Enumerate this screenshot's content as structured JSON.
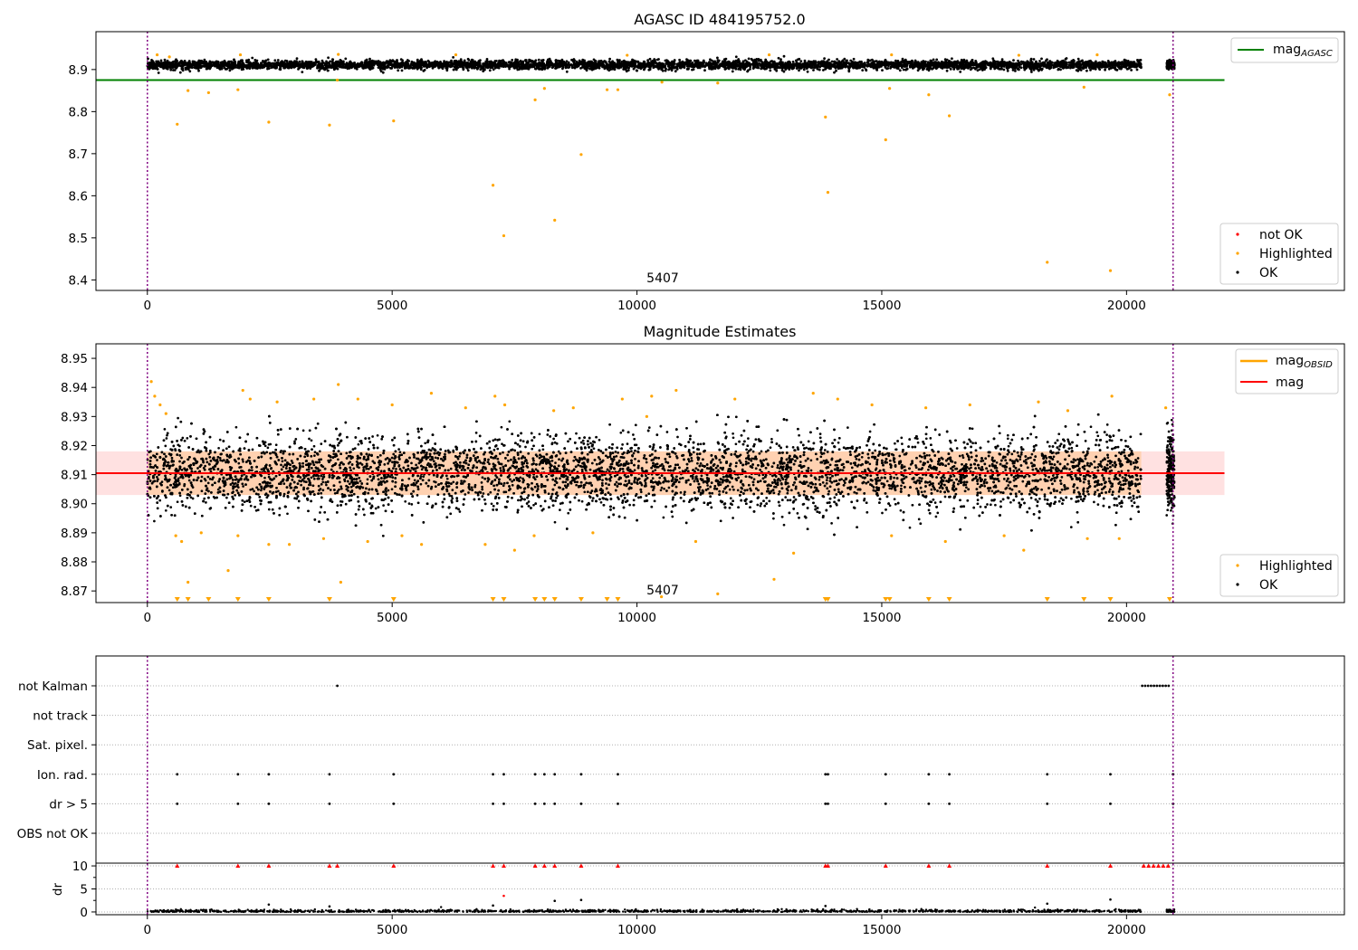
{
  "chart_data": [
    {
      "type": "scatter",
      "title": "AGASC ID 484195752.0",
      "xlim": [
        -1050,
        24450
      ],
      "ylim": [
        8.375,
        8.99
      ],
      "x_ticks": [
        0,
        5000,
        10000,
        15000,
        20000
      ],
      "y_ticks": [
        8.4,
        8.5,
        8.6,
        8.7,
        8.8,
        8.9
      ],
      "grid": false,
      "annotation": "5407",
      "vlines": [
        0,
        20950
      ],
      "hlines": [
        {
          "name": "mag_AGASC",
          "y": 8.875,
          "color": "#008000",
          "x_range": [
            -1050,
            22000
          ]
        }
      ],
      "series": [
        {
          "name": "not OK",
          "color": "#ff0000",
          "points": []
        },
        {
          "name": "Highlighted",
          "color": "#ffa500",
          "points": [
            [
              610,
              8.77
            ],
            [
              830,
              8.85
            ],
            [
              1250,
              8.845
            ],
            [
              1850,
              8.852
            ],
            [
              2480,
              8.775
            ],
            [
              3720,
              8.768
            ],
            [
              3880,
              8.875
            ],
            [
              5030,
              8.778
            ],
            [
              7060,
              8.625
            ],
            [
              7280,
              8.505
            ],
            [
              7920,
              8.828
            ],
            [
              8110,
              8.855
            ],
            [
              8320,
              8.542
            ],
            [
              8860,
              8.698
            ],
            [
              9390,
              8.852
            ],
            [
              9610,
              8.852
            ],
            [
              10510,
              8.87
            ],
            [
              11650,
              8.868
            ],
            [
              13850,
              8.787
            ],
            [
              13900,
              8.608
            ],
            [
              15080,
              8.733
            ],
            [
              15160,
              8.855
            ],
            [
              15960,
              8.84
            ],
            [
              16380,
              8.79
            ],
            [
              18380,
              8.442
            ],
            [
              19130,
              8.858
            ],
            [
              19670,
              8.422
            ],
            [
              20880,
              8.84
            ],
            [
              200,
              8.935
            ],
            [
              450,
              8.93
            ],
            [
              1900,
              8.935
            ],
            [
              3900,
              8.936
            ],
            [
              6300,
              8.935
            ],
            [
              9800,
              8.934
            ],
            [
              12700,
              8.935
            ],
            [
              15200,
              8.935
            ],
            [
              17800,
              8.934
            ],
            [
              19400,
              8.935
            ]
          ]
        }
      ],
      "ok_band": {
        "name": "OK",
        "color": "#000000",
        "x_range": [
          0,
          20300
        ],
        "x_range_2": [
          20820,
          20980
        ],
        "center": 8.911,
        "spread": 0.012,
        "count": 5407
      },
      "legends": [
        {
          "position": "upper right",
          "entries": [
            {
              "label": "mag",
              "sub": "AGASC",
              "kind": "line",
              "color": "#008000"
            }
          ]
        },
        {
          "position": "lower right",
          "entries": [
            {
              "label": "not OK",
              "kind": "dot",
              "color": "#ff0000"
            },
            {
              "label": "Highlighted",
              "kind": "dot",
              "color": "#ffa500"
            },
            {
              "label": "OK",
              "kind": "dot",
              "color": "#000000"
            }
          ]
        }
      ]
    },
    {
      "type": "scatter",
      "title": "Magnitude Estimates",
      "xlim": [
        -1050,
        24450
      ],
      "ylim": [
        8.866,
        8.955
      ],
      "x_ticks": [
        0,
        5000,
        10000,
        15000,
        20000
      ],
      "y_ticks": [
        8.87,
        8.88,
        8.89,
        8.9,
        8.91,
        8.92,
        8.93,
        8.94,
        8.95
      ],
      "grid": false,
      "annotation": "5407",
      "vlines": [
        0,
        20950
      ],
      "hlines": [
        {
          "name": "mag_OBSID",
          "y": 8.9105,
          "color": "#ffa500",
          "x_range": [
            0,
            20300
          ]
        },
        {
          "name": "mag",
          "y": 8.9105,
          "color": "#ff0000",
          "x_range": [
            -1050,
            22000
          ]
        }
      ],
      "bands": [
        {
          "color": "#ffb3b3",
          "opacity": 0.4,
          "y_range": [
            8.903,
            8.918
          ],
          "x_range": [
            -1050,
            22000
          ]
        },
        {
          "color": "#ffc48a",
          "opacity": 0.55,
          "y_range": [
            8.903,
            8.918
          ],
          "x_range": [
            0,
            20300
          ]
        }
      ],
      "series": [
        {
          "name": "Highlighted",
          "color": "#ffa500",
          "points": [
            [
              80,
              8.942
            ],
            [
              150,
              8.937
            ],
            [
              260,
              8.934
            ],
            [
              380,
              8.931
            ],
            [
              580,
              8.889
            ],
            [
              700,
              8.887
            ],
            [
              830,
              8.873
            ],
            [
              1100,
              8.89
            ],
            [
              1650,
              8.877
            ],
            [
              1850,
              8.889
            ],
            [
              1950,
              8.939
            ],
            [
              2100,
              8.936
            ],
            [
              2480,
              8.886
            ],
            [
              2650,
              8.935
            ],
            [
              2900,
              8.886
            ],
            [
              3400,
              8.936
            ],
            [
              3600,
              8.888
            ],
            [
              3900,
              8.941
            ],
            [
              3950,
              8.873
            ],
            [
              4300,
              8.936
            ],
            [
              4500,
              8.887
            ],
            [
              5000,
              8.934
            ],
            [
              5200,
              8.889
            ],
            [
              5600,
              8.886
            ],
            [
              5800,
              8.938
            ],
            [
              6500,
              8.933
            ],
            [
              6900,
              8.886
            ],
            [
              7100,
              8.937
            ],
            [
              7300,
              8.934
            ],
            [
              7500,
              8.884
            ],
            [
              7900,
              8.889
            ],
            [
              8300,
              8.932
            ],
            [
              8700,
              8.933
            ],
            [
              9100,
              8.89
            ],
            [
              9700,
              8.936
            ],
            [
              10200,
              8.93
            ],
            [
              10300,
              8.937
            ],
            [
              10500,
              8.868
            ],
            [
              10800,
              8.939
            ],
            [
              11200,
              8.887
            ],
            [
              11650,
              8.869
            ],
            [
              12000,
              8.936
            ],
            [
              12800,
              8.874
            ],
            [
              13200,
              8.883
            ],
            [
              13600,
              8.938
            ],
            [
              14100,
              8.936
            ],
            [
              14800,
              8.934
            ],
            [
              15200,
              8.889
            ],
            [
              15900,
              8.933
            ],
            [
              16300,
              8.887
            ],
            [
              16800,
              8.934
            ],
            [
              17500,
              8.889
            ],
            [
              17900,
              8.884
            ],
            [
              18200,
              8.935
            ],
            [
              18800,
              8.932
            ],
            [
              19200,
              8.888
            ],
            [
              19700,
              8.937
            ],
            [
              19850,
              8.888
            ],
            [
              20800,
              8.933
            ]
          ]
        },
        {
          "name": "below-range markers",
          "color": "#ffa500",
          "marker": "triangle-down",
          "x": [
            610,
            830,
            1250,
            1850,
            2480,
            3720,
            5030,
            7060,
            7280,
            7920,
            8110,
            8320,
            8860,
            9390,
            9610,
            13850,
            13900,
            15080,
            15160,
            15960,
            16380,
            18380,
            19130,
            19670,
            20880
          ]
        }
      ],
      "ok_band": {
        "name": "OK",
        "color": "#000000",
        "x_range": [
          0,
          20300
        ],
        "x_range_2": [
          20820,
          20980
        ],
        "center": 8.9105,
        "spread": 0.0085
      },
      "legends": [
        {
          "position": "upper right",
          "entries": [
            {
              "label": "mag",
              "sub": "OBSID",
              "kind": "line",
              "color": "#ffa500"
            },
            {
              "label": "mag",
              "kind": "line",
              "color": "#ff0000"
            }
          ]
        },
        {
          "position": "lower right",
          "entries": [
            {
              "label": "Highlighted",
              "kind": "dot",
              "color": "#ffa500"
            },
            {
              "label": "OK",
              "kind": "dot",
              "color": "#000000"
            }
          ]
        }
      ]
    },
    {
      "type": "scatter",
      "title": "",
      "xlim": [
        -1050,
        24450
      ],
      "x_ticks": [
        0,
        5000,
        10000,
        15000,
        20000
      ],
      "categories": [
        "not Kalman",
        "not track",
        "Sat. pixel.",
        "Ion. rad.",
        "dr > 5",
        "OBS not OK"
      ],
      "grid": true,
      "vlines": [
        0,
        20950
      ],
      "flags": [
        {
          "category": "not Kalman",
          "x": [
            3880,
            20320,
            20380,
            20440,
            20500,
            20560,
            20620,
            20680,
            20740,
            20800,
            20860
          ]
        },
        {
          "category": "not track",
          "x": []
        },
        {
          "category": "Sat. pixel.",
          "x": []
        },
        {
          "category": "Ion. rad.",
          "x": [
            610,
            1850,
            2480,
            3720,
            5030,
            7060,
            7280,
            7920,
            8110,
            8320,
            8860,
            9610,
            13850,
            13900,
            15080,
            15960,
            16380,
            18380,
            19670,
            20950
          ]
        },
        {
          "category": "dr > 5",
          "x": [
            610,
            1850,
            2480,
            3720,
            5030,
            7060,
            7280,
            7920,
            8110,
            8320,
            8860,
            9610,
            13850,
            13900,
            15080,
            15960,
            16380,
            18380,
            19670,
            20950
          ]
        },
        {
          "category": "OBS not OK",
          "x": []
        }
      ],
      "dr": {
        "ylabel": "dr",
        "y_ticks": [
          0,
          5,
          10
        ],
        "ylim": [
          -0.6,
          10.6
        ],
        "clipped_marker_x": [
          610,
          1850,
          2480,
          3720,
          3880,
          5030,
          7060,
          7280,
          7920,
          8110,
          8320,
          8860,
          9610,
          13850,
          13900,
          15080,
          15960,
          16380,
          18380,
          19670,
          20350,
          20450,
          20550,
          20650,
          20750,
          20850
        ],
        "outliers": [
          [
            2480,
            1.6
          ],
          [
            3720,
            1.2
          ],
          [
            7060,
            1.4
          ],
          [
            7280,
            3.5
          ],
          [
            8320,
            2.4
          ],
          [
            8860,
            2.6
          ],
          [
            13850,
            1.3
          ],
          [
            18380,
            1.8
          ],
          [
            19670,
            2.7
          ]
        ],
        "baseline_range": [
          0,
          20300
        ],
        "baseline_range_2": [
          20820,
          20980
        ]
      }
    }
  ]
}
